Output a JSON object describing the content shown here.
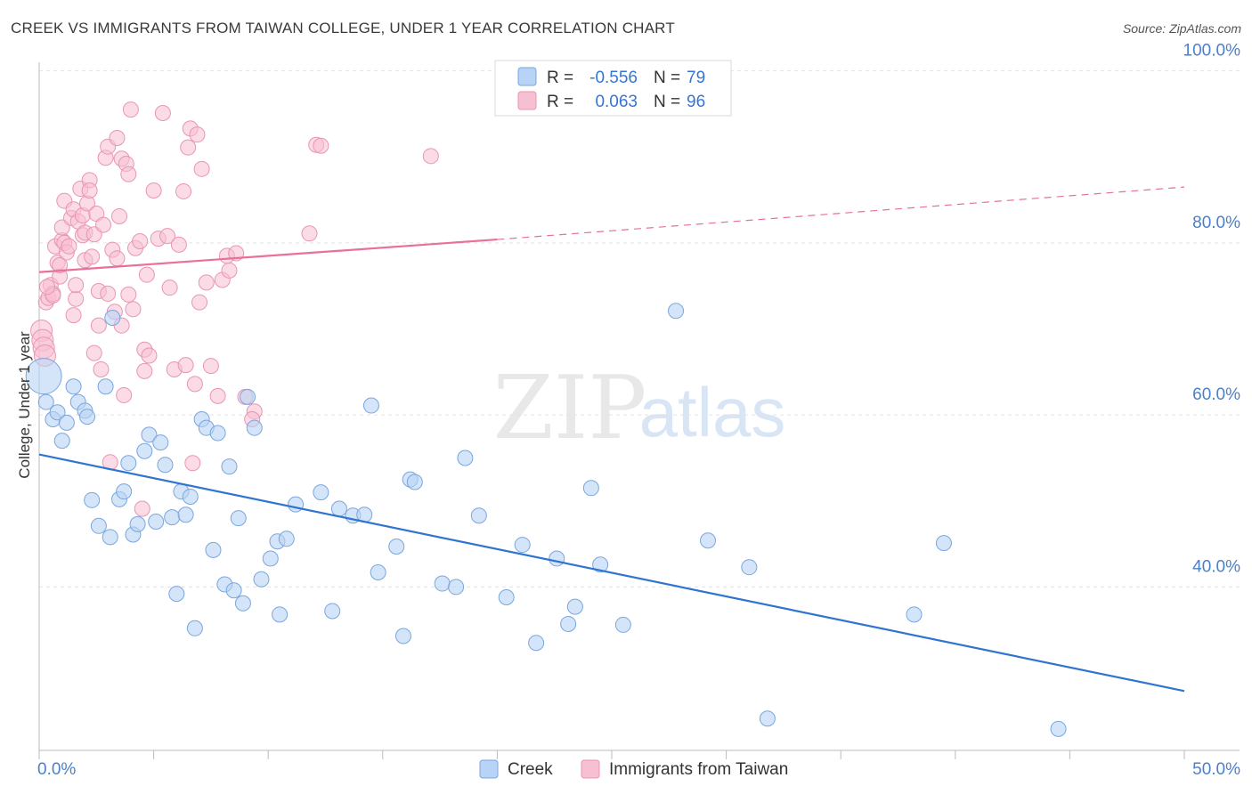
{
  "title": "CREEK VS IMMIGRANTS FROM TAIWAN COLLEGE, UNDER 1 YEAR CORRELATION CHART",
  "source": "Source: ZipAtlas.com",
  "watermark": {
    "zip": "ZIP",
    "atlas": "atlas"
  },
  "colors": {
    "creek_fill": "#b8d3f5",
    "creek_stroke": "#7aa6dd",
    "creek_line": "#2f74d0",
    "taiwan_fill": "#f7c0d2",
    "taiwan_stroke": "#e995b2",
    "taiwan_line": "#e8709a",
    "axis_text": "#4a7fcc",
    "grid": "#e3e3e3"
  },
  "legend": {
    "rows": [
      {
        "r_label": "R =",
        "r_value": "-0.556",
        "n_label": "N =",
        "n_value": "79"
      },
      {
        "r_label": "R =",
        "r_value": "0.063",
        "n_label": "N =",
        "n_value": "96"
      }
    ]
  },
  "chart_data": {
    "type": "scatter",
    "title": "CREEK VS IMMIGRANTS FROM TAIWAN COLLEGE, UNDER 1 YEAR CORRELATION CHART",
    "xlabel": "",
    "ylabel": "College, Under 1 year",
    "xlim": [
      0,
      50
    ],
    "ylim": [
      21,
      101
    ],
    "x_tick_labels": [
      "0.0%",
      "50.0%"
    ],
    "y_ticks": [
      40,
      60,
      80,
      100
    ],
    "y_tick_labels": [
      "40.0%",
      "60.0%",
      "80.0%",
      "100.0%"
    ],
    "grid": true,
    "legend_position": "bottom-center",
    "series": [
      {
        "name": "Creek",
        "r": -0.556,
        "n": 79,
        "trend": {
          "x0": 0,
          "y0": 55.4,
          "x1": 50,
          "y1": 27.9
        },
        "points": [
          [
            0.2,
            64.5
          ],
          [
            0.3,
            61.5
          ],
          [
            0.6,
            59.5
          ],
          [
            0.8,
            60.3
          ],
          [
            1.0,
            57.0
          ],
          [
            1.2,
            59.1
          ],
          [
            1.5,
            63.3
          ],
          [
            1.7,
            61.5
          ],
          [
            2.0,
            60.5
          ],
          [
            2.1,
            59.8
          ],
          [
            2.3,
            50.1
          ],
          [
            2.6,
            47.1
          ],
          [
            2.9,
            63.3
          ],
          [
            3.1,
            45.8
          ],
          [
            3.2,
            71.3
          ],
          [
            3.5,
            50.2
          ],
          [
            3.7,
            51.1
          ],
          [
            3.9,
            54.4
          ],
          [
            4.1,
            46.1
          ],
          [
            4.3,
            47.3
          ],
          [
            4.6,
            55.8
          ],
          [
            4.8,
            57.7
          ],
          [
            5.1,
            47.6
          ],
          [
            5.3,
            56.8
          ],
          [
            5.5,
            54.2
          ],
          [
            5.8,
            48.1
          ],
          [
            6.0,
            39.2
          ],
          [
            6.2,
            51.1
          ],
          [
            6.4,
            48.4
          ],
          [
            6.6,
            50.5
          ],
          [
            6.8,
            35.2
          ],
          [
            7.1,
            59.5
          ],
          [
            7.3,
            58.5
          ],
          [
            7.6,
            44.3
          ],
          [
            7.8,
            57.9
          ],
          [
            8.1,
            40.3
          ],
          [
            8.3,
            54.0
          ],
          [
            8.5,
            39.6
          ],
          [
            8.7,
            48.0
          ],
          [
            8.9,
            38.1
          ],
          [
            9.1,
            62.1
          ],
          [
            9.4,
            58.5
          ],
          [
            9.7,
            40.9
          ],
          [
            10.1,
            43.3
          ],
          [
            10.4,
            45.3
          ],
          [
            10.5,
            36.8
          ],
          [
            10.8,
            45.6
          ],
          [
            11.2,
            49.6
          ],
          [
            12.3,
            51.0
          ],
          [
            12.8,
            37.2
          ],
          [
            13.1,
            49.1
          ],
          [
            13.7,
            48.3
          ],
          [
            14.2,
            48.4
          ],
          [
            14.5,
            61.1
          ],
          [
            14.8,
            41.7
          ],
          [
            15.6,
            44.7
          ],
          [
            15.9,
            34.3
          ],
          [
            16.2,
            52.5
          ],
          [
            16.4,
            52.2
          ],
          [
            17.6,
            40.4
          ],
          [
            18.2,
            40.0
          ],
          [
            18.6,
            55.0
          ],
          [
            19.2,
            48.3
          ],
          [
            20.4,
            38.8
          ],
          [
            21.1,
            44.9
          ],
          [
            21.7,
            33.5
          ],
          [
            22.6,
            43.3
          ],
          [
            23.1,
            35.7
          ],
          [
            23.4,
            37.7
          ],
          [
            24.1,
            51.5
          ],
          [
            24.5,
            42.6
          ],
          [
            25.5,
            35.6
          ],
          [
            27.8,
            72.1
          ],
          [
            29.2,
            45.4
          ],
          [
            31.0,
            42.3
          ],
          [
            31.8,
            24.7
          ],
          [
            38.2,
            36.8
          ],
          [
            39.5,
            45.1
          ],
          [
            44.5,
            23.5
          ]
        ]
      },
      {
        "name": "Immigrants from Taiwan",
        "r": 0.063,
        "n": 96,
        "trend": {
          "x0": 0,
          "y0": 76.6,
          "x1": 20,
          "y1": 80.4,
          "dash_x1": 50,
          "dash_y1": 86.5
        },
        "points": [
          [
            0.1,
            69.8
          ],
          [
            0.15,
            68.7
          ],
          [
            0.2,
            67.8
          ],
          [
            0.25,
            66.9
          ],
          [
            0.3,
            73.1
          ],
          [
            0.4,
            73.6
          ],
          [
            0.5,
            75.1
          ],
          [
            0.6,
            74.1
          ],
          [
            0.6,
            73.9
          ],
          [
            0.7,
            79.6
          ],
          [
            0.8,
            77.7
          ],
          [
            0.9,
            76.1
          ],
          [
            0.9,
            77.4
          ],
          [
            1.0,
            80.3
          ],
          [
            1.0,
            81.8
          ],
          [
            1.1,
            80.0
          ],
          [
            1.1,
            84.9
          ],
          [
            1.2,
            78.9
          ],
          [
            1.3,
            79.6
          ],
          [
            1.4,
            82.9
          ],
          [
            1.5,
            71.6
          ],
          [
            1.5,
            83.9
          ],
          [
            1.6,
            73.5
          ],
          [
            1.6,
            75.1
          ],
          [
            1.7,
            82.5
          ],
          [
            1.8,
            86.3
          ],
          [
            1.9,
            80.9
          ],
          [
            1.9,
            83.2
          ],
          [
            2.0,
            81.2
          ],
          [
            2.0,
            78.0
          ],
          [
            2.1,
            84.6
          ],
          [
            2.2,
            87.3
          ],
          [
            2.2,
            86.1
          ],
          [
            2.3,
            78.4
          ],
          [
            2.4,
            67.2
          ],
          [
            2.4,
            81.0
          ],
          [
            2.5,
            83.4
          ],
          [
            2.6,
            70.4
          ],
          [
            2.6,
            74.4
          ],
          [
            2.7,
            65.3
          ],
          [
            2.8,
            82.1
          ],
          [
            2.9,
            89.9
          ],
          [
            3.0,
            91.2
          ],
          [
            3.0,
            74.1
          ],
          [
            3.1,
            54.5
          ],
          [
            3.2,
            79.2
          ],
          [
            3.3,
            72.0
          ],
          [
            3.4,
            92.2
          ],
          [
            3.4,
            78.2
          ],
          [
            3.5,
            83.1
          ],
          [
            3.6,
            89.8
          ],
          [
            3.6,
            70.4
          ],
          [
            3.7,
            62.3
          ],
          [
            3.8,
            89.2
          ],
          [
            3.9,
            88.0
          ],
          [
            3.9,
            74.0
          ],
          [
            4.0,
            95.5
          ],
          [
            4.1,
            72.3
          ],
          [
            4.2,
            79.4
          ],
          [
            4.4,
            80.2
          ],
          [
            4.5,
            49.1
          ],
          [
            4.6,
            67.6
          ],
          [
            4.6,
            65.1
          ],
          [
            4.7,
            76.3
          ],
          [
            4.8,
            66.9
          ],
          [
            5.0,
            86.1
          ],
          [
            5.2,
            80.5
          ],
          [
            5.4,
            95.1
          ],
          [
            5.6,
            80.8
          ],
          [
            5.7,
            74.8
          ],
          [
            5.9,
            65.3
          ],
          [
            6.1,
            79.8
          ],
          [
            6.3,
            86.0
          ],
          [
            6.4,
            65.8
          ],
          [
            6.5,
            91.1
          ],
          [
            6.6,
            93.3
          ],
          [
            6.7,
            54.4
          ],
          [
            6.8,
            63.6
          ],
          [
            6.9,
            92.6
          ],
          [
            7.0,
            73.1
          ],
          [
            7.1,
            88.6
          ],
          [
            7.3,
            75.4
          ],
          [
            7.5,
            65.7
          ],
          [
            7.8,
            62.2
          ],
          [
            8.0,
            75.7
          ],
          [
            8.2,
            78.5
          ],
          [
            8.3,
            76.8
          ],
          [
            8.6,
            78.8
          ],
          [
            9.0,
            62.1
          ],
          [
            9.4,
            60.4
          ],
          [
            9.3,
            59.5
          ],
          [
            11.8,
            81.1
          ],
          [
            12.1,
            91.4
          ],
          [
            12.3,
            91.3
          ],
          [
            17.1,
            90.1
          ],
          [
            0.35,
            74.9
          ]
        ]
      }
    ]
  },
  "bottom_legend": {
    "items": [
      {
        "label": "Creek"
      },
      {
        "label": "Immigrants from Taiwan"
      }
    ]
  }
}
